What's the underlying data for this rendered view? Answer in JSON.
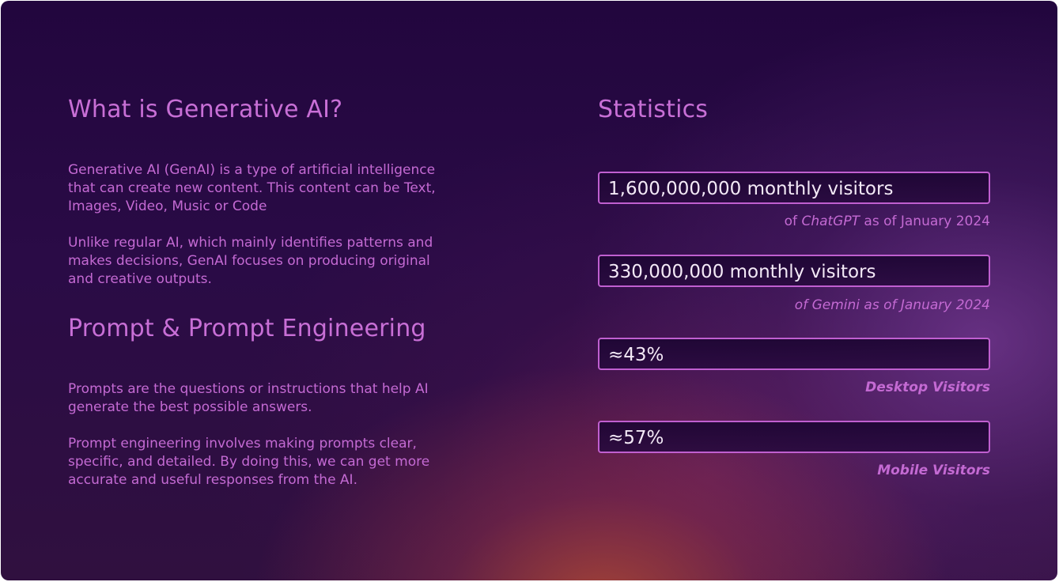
{
  "left": {
    "section1": {
      "title": "What is Generative AI?",
      "paragraphs": [
        "Generative AI (GenAI) is a type of artificial intelligence that can create new content. This content can be Text, Images, Video, Music or Code",
        "Unlike regular AI, which mainly identifies patterns and makes decisions, GenAI focuses on producing original and creative outputs."
      ]
    },
    "section2": {
      "title": "Prompt & Prompt Engineering",
      "paragraphs": [
        "Prompts are the questions or instructions that help AI generate the best possible answers.",
        "Prompt engineering involves making prompts clear, specific, and detailed. By doing this, we can get more accurate and useful responses from the AI."
      ]
    }
  },
  "statistics": {
    "title": "Statistics",
    "items": [
      {
        "value": "1,600,000,000 monthly visitors",
        "caption_prefix": "of ",
        "caption_emphasis": "ChatGPT",
        "caption_suffix": " as of January 2024"
      },
      {
        "value": "330,000,000 monthly visitors",
        "caption": "of Gemini as of January 2024"
      },
      {
        "value": "≈43%",
        "caption": "Desktop Visitors"
      },
      {
        "value": "≈57%",
        "caption": "Mobile Visitors"
      }
    ]
  },
  "colors": {
    "accent_text": "#c46ad3",
    "box_border": "#c05fd0",
    "value_text": "#f3e9f6",
    "background_top": "#22063e"
  }
}
